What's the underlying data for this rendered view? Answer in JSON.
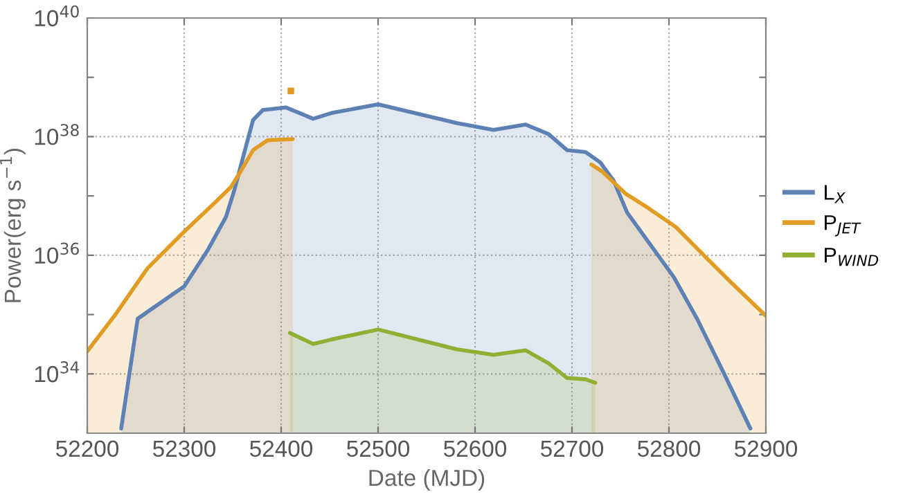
{
  "chart_data": {
    "type": "area",
    "xlabel": "Date (MJD)",
    "ylabel": "Power(erg s$^{−1}$)",
    "log": "y",
    "xlim": [
      52200,
      52900
    ],
    "xticks": [
      52200,
      52300,
      52400,
      52500,
      52600,
      52700,
      52800,
      52900
    ],
    "ylim": [
      1e+33,
      1e+40
    ],
    "yticks": [
      {
        "value": 1e+34,
        "label": "10$^{34}$"
      },
      {
        "value": 1e+35,
        "label": null
      },
      {
        "value": 1e+36,
        "label": "10$^{36}$"
      },
      {
        "value": 1e+37,
        "label": null
      },
      {
        "value": 1e+38,
        "label": "10$^{38}$"
      },
      {
        "value": 1e+39,
        "label": null
      },
      {
        "value": 1e+40,
        "label": "10$^{40}$"
      }
    ],
    "grid": true,
    "legend": "right",
    "series": [
      {
        "name": "L$_{X}$",
        "color": "#5e81b5",
        "x": [
          52235,
          52252,
          52300,
          52324,
          52343,
          52352,
          52362,
          52371,
          52381,
          52405,
          52419,
          52433,
          52452,
          52500,
          52581,
          52619,
          52652,
          52676,
          52695,
          52714,
          52729,
          52743,
          52757,
          52781,
          52805,
          52829,
          52857,
          52884
        ],
        "values": [
          1.2e+33,
          8.5e+34,
          3e+35,
          1.2e+36,
          4.4e+36,
          1.3e+37,
          5.4e+37,
          1.9e+38,
          2.8e+38,
          3.1e+38,
          2.5e+38,
          2e+38,
          2.5e+38,
          3.5e+38,
          1.7e+38,
          1.3e+38,
          1.6e+38,
          1.1e+38,
          5.9e+37,
          5.5e+37,
          3.7e+37,
          1.8e+37,
          5.2e+36,
          1.5e+36,
          4.3e+35,
          8.5e+34,
          1e+34,
          1.2e+33
        ]
      },
      {
        "name": "P$_{JET}$",
        "color": "#e19c24",
        "x": [
          52200,
          52229,
          52262,
          52300,
          52333,
          52348,
          52357,
          52371,
          52386,
          52412,
          52416,
          52720,
          52731,
          52755,
          52779,
          52807,
          52836,
          52864,
          52900
        ],
        "values": [
          2.4e+34,
          1e+35,
          6e+35,
          2.5e+36,
          8.1e+36,
          1.4e+37,
          2.4e+37,
          5.9e+37,
          8.7e+37,
          9.1e+37,
          null,
          3.4e+37,
          2.6e+37,
          1.1e+37,
          6.2e+36,
          3e+36,
          1e+36,
          3.5e+35,
          9.5e+34
        ]
      },
      {
        "type": "scatter",
        "color": "#e19c24",
        "x": [
          52410
        ],
        "values": [
          5.9e+38
        ]
      },
      {
        "name": "P$_{WIND}$",
        "color": "#8fb032",
        "x": [
          52409,
          52433,
          52452,
          52500,
          52581,
          52619,
          52652,
          52676,
          52695,
          52714,
          52724
        ],
        "values": [
          4.9e+34,
          3.2e+34,
          3.8e+34,
          5.6e+34,
          2.6e+34,
          2.1e+34,
          2.5e+34,
          1.5e+34,
          8.5e+33,
          8.1e+33,
          7.1e+33
        ]
      }
    ]
  }
}
